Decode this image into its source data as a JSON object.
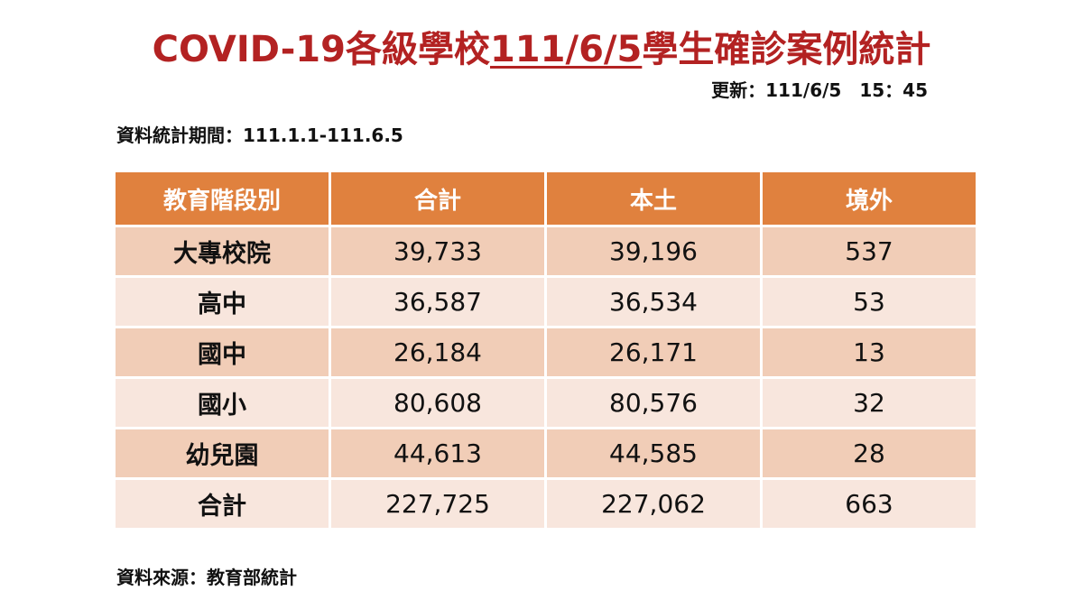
{
  "title": {
    "prefix": "COVID-19各級學校",
    "date": "111/6/5",
    "suffix": "學生確診案例統計"
  },
  "updated": "更新：111/6/5　15：45",
  "period": "資料統計期間：111.1.1-111.6.5",
  "source": "資料來源：教育部統計",
  "table": {
    "headers": [
      "教育階段別",
      "合計",
      "本土",
      "境外"
    ],
    "rows": [
      {
        "level": "大專校院",
        "total": "39,733",
        "local": "39,196",
        "imported": "537"
      },
      {
        "level": "高中",
        "total": "36,587",
        "local": "36,534",
        "imported": "53"
      },
      {
        "level": "國中",
        "total": "26,184",
        "local": "26,171",
        "imported": "13"
      },
      {
        "level": "國小",
        "total": "80,608",
        "local": "80,576",
        "imported": "32"
      },
      {
        "level": "幼兒園",
        "total": "44,613",
        "local": "44,585",
        "imported": "28"
      },
      {
        "level": "合計",
        "total": "227,725",
        "local": "227,062",
        "imported": "663"
      }
    ]
  },
  "colors": {
    "title": "#b32222",
    "header_bg": "#e0813e",
    "row_dark": "#f1cdb7",
    "row_light": "#f8e6dd"
  }
}
